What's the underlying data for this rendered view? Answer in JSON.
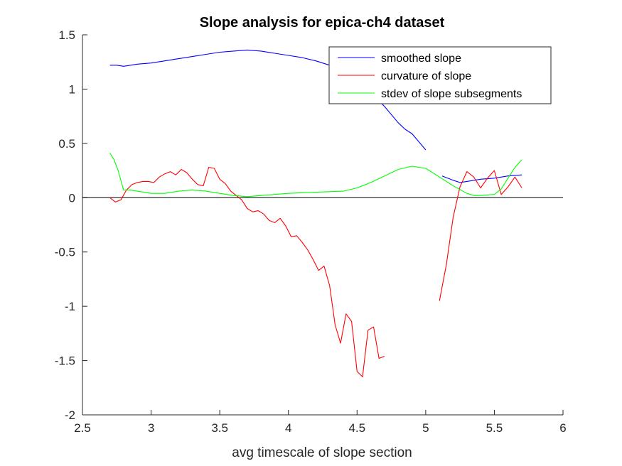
{
  "chart_data": {
    "type": "line",
    "title": "Slope analysis for epica-ch4 dataset",
    "xlabel": "avg timescale of slope section",
    "ylabel": "",
    "xlim": [
      2.5,
      6
    ],
    "ylim": [
      -2,
      1.5
    ],
    "xticks": [
      2.5,
      3,
      3.5,
      4,
      4.5,
      5,
      5.5,
      6
    ],
    "xtick_labels": [
      "2.5",
      "3",
      "3.5",
      "4",
      "4.5",
      "5",
      "5.5",
      "6"
    ],
    "yticks": [
      1.5,
      1,
      0.5,
      0,
      -0.5,
      -1,
      -1.5,
      -2
    ],
    "ytick_labels": [
      "1.5",
      "1",
      "0.5",
      "0",
      "-0.5",
      "-1",
      "-1.5",
      "-2"
    ],
    "grid": false,
    "legend_position": "top-right",
    "reference_line_y": 0,
    "series": [
      {
        "name": "smoothed slope",
        "color": "#0000ff",
        "segments": [
          [
            [
              2.7,
              1.22
            ],
            [
              2.75,
              1.22
            ],
            [
              2.8,
              1.21
            ],
            [
              2.85,
              1.22
            ],
            [
              2.9,
              1.23
            ],
            [
              3.0,
              1.24
            ],
            [
              3.1,
              1.26
            ],
            [
              3.2,
              1.28
            ],
            [
              3.3,
              1.3
            ],
            [
              3.4,
              1.32
            ],
            [
              3.5,
              1.34
            ],
            [
              3.6,
              1.35
            ],
            [
              3.7,
              1.36
            ],
            [
              3.8,
              1.35
            ],
            [
              3.9,
              1.33
            ],
            [
              4.0,
              1.31
            ],
            [
              4.1,
              1.29
            ],
            [
              4.2,
              1.26
            ],
            [
              4.3,
              1.22
            ],
            [
              4.4,
              1.16
            ],
            [
              4.5,
              1.08
            ],
            [
              4.6,
              0.97
            ],
            [
              4.7,
              0.84
            ],
            [
              4.8,
              0.69
            ],
            [
              4.85,
              0.63
            ],
            [
              4.9,
              0.59
            ],
            [
              5.0,
              0.44
            ]
          ],
          [
            [
              5.12,
              0.2
            ],
            [
              5.2,
              0.16
            ],
            [
              5.25,
              0.14
            ],
            [
              5.3,
              0.15
            ],
            [
              5.4,
              0.17
            ],
            [
              5.5,
              0.18
            ],
            [
              5.6,
              0.2
            ],
            [
              5.7,
              0.21
            ]
          ]
        ]
      },
      {
        "name": "curvature of slope",
        "color": "#ff0000",
        "segments": [
          [
            [
              2.7,
              0.0
            ],
            [
              2.74,
              -0.04
            ],
            [
              2.78,
              -0.02
            ],
            [
              2.82,
              0.07
            ],
            [
              2.86,
              0.12
            ],
            [
              2.9,
              0.14
            ],
            [
              2.94,
              0.15
            ],
            [
              2.98,
              0.15
            ],
            [
              3.02,
              0.14
            ],
            [
              3.06,
              0.19
            ],
            [
              3.1,
              0.22
            ],
            [
              3.14,
              0.24
            ],
            [
              3.18,
              0.21
            ],
            [
              3.22,
              0.26
            ],
            [
              3.26,
              0.23
            ],
            [
              3.3,
              0.17
            ],
            [
              3.34,
              0.12
            ],
            [
              3.38,
              0.11
            ],
            [
              3.42,
              0.28
            ],
            [
              3.46,
              0.27
            ],
            [
              3.5,
              0.17
            ],
            [
              3.54,
              0.13
            ],
            [
              3.58,
              0.06
            ],
            [
              3.62,
              0.02
            ],
            [
              3.66,
              -0.02
            ],
            [
              3.7,
              -0.1
            ],
            [
              3.74,
              -0.13
            ],
            [
              3.78,
              -0.12
            ],
            [
              3.82,
              -0.15
            ],
            [
              3.86,
              -0.21
            ],
            [
              3.9,
              -0.23
            ],
            [
              3.94,
              -0.19
            ],
            [
              3.98,
              -0.26
            ],
            [
              4.02,
              -0.36
            ],
            [
              4.06,
              -0.35
            ],
            [
              4.1,
              -0.41
            ],
            [
              4.14,
              -0.48
            ],
            [
              4.18,
              -0.57
            ],
            [
              4.22,
              -0.67
            ],
            [
              4.26,
              -0.63
            ],
            [
              4.3,
              -0.81
            ],
            [
              4.34,
              -1.17
            ],
            [
              4.38,
              -1.34
            ],
            [
              4.42,
              -1.07
            ],
            [
              4.46,
              -1.14
            ],
            [
              4.5,
              -1.6
            ],
            [
              4.54,
              -1.65
            ],
            [
              4.58,
              -1.22
            ],
            [
              4.62,
              -1.19
            ],
            [
              4.66,
              -1.48
            ],
            [
              4.7,
              -1.46
            ]
          ],
          [
            [
              5.1,
              -0.95
            ],
            [
              5.15,
              -0.62
            ],
            [
              5.2,
              -0.18
            ],
            [
              5.25,
              0.1
            ],
            [
              5.3,
              0.24
            ],
            [
              5.35,
              0.19
            ],
            [
              5.4,
              0.09
            ],
            [
              5.45,
              0.18
            ],
            [
              5.5,
              0.25
            ],
            [
              5.55,
              0.03
            ],
            [
              5.6,
              0.1
            ],
            [
              5.65,
              0.19
            ],
            [
              5.7,
              0.09
            ]
          ]
        ]
      },
      {
        "name": "stdev of slope subsegments",
        "color": "#00ff00",
        "segments": [
          [
            [
              2.7,
              0.41
            ],
            [
              2.73,
              0.35
            ],
            [
              2.76,
              0.25
            ],
            [
              2.8,
              0.07
            ],
            [
              2.85,
              0.07
            ],
            [
              2.9,
              0.06
            ],
            [
              3.0,
              0.04
            ],
            [
              3.1,
              0.04
            ],
            [
              3.2,
              0.06
            ],
            [
              3.3,
              0.07
            ],
            [
              3.4,
              0.06
            ],
            [
              3.5,
              0.04
            ],
            [
              3.6,
              0.02
            ],
            [
              3.7,
              0.01
            ],
            [
              3.8,
              0.02
            ],
            [
              3.9,
              0.03
            ],
            [
              4.0,
              0.04
            ],
            [
              4.2,
              0.05
            ],
            [
              4.4,
              0.06
            ],
            [
              4.5,
              0.09
            ],
            [
              4.6,
              0.14
            ],
            [
              4.7,
              0.2
            ],
            [
              4.8,
              0.26
            ],
            [
              4.9,
              0.29
            ],
            [
              5.0,
              0.27
            ],
            [
              5.1,
              0.19
            ],
            [
              5.2,
              0.11
            ],
            [
              5.3,
              0.04
            ],
            [
              5.35,
              0.02
            ],
            [
              5.4,
              0.02
            ],
            [
              5.5,
              0.03
            ],
            [
              5.55,
              0.08
            ],
            [
              5.6,
              0.18
            ],
            [
              5.65,
              0.28
            ],
            [
              5.7,
              0.35
            ]
          ]
        ]
      }
    ]
  }
}
